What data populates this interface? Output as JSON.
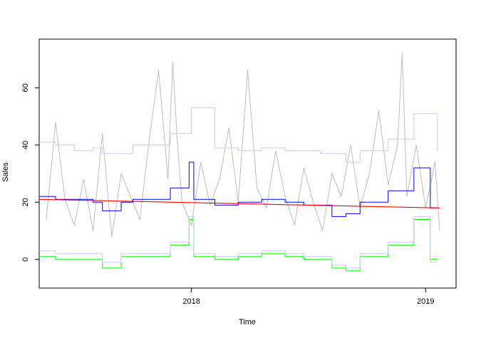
{
  "chart_data": {
    "type": "line",
    "title": "",
    "xlabel": "Time",
    "ylabel": "Sales",
    "x_range": [
      2017.35,
      2019.13
    ],
    "ylim": [
      -10,
      77
    ],
    "x_ticks": [
      {
        "value": 2018,
        "label": "2018"
      },
      {
        "value": 2019,
        "label": "2019"
      }
    ],
    "y_ticks": [
      {
        "value": 0,
        "label": "0"
      },
      {
        "value": 20,
        "label": "20"
      },
      {
        "value": 40,
        "label": "40"
      },
      {
        "value": 60,
        "label": "60"
      }
    ],
    "grid": false,
    "legend": "none",
    "observed": {
      "color": "#bebebe",
      "x": [
        2017.38,
        2017.42,
        2017.46,
        2017.5,
        2017.54,
        2017.58,
        2017.62,
        2017.66,
        2017.7,
        2017.74,
        2017.78,
        2017.82,
        2017.86,
        2017.9,
        2017.92,
        2017.94,
        2017.96,
        2018.0,
        2018.04,
        2018.08,
        2018.12,
        2018.16,
        2018.2,
        2018.24,
        2018.28,
        2018.32,
        2018.36,
        2018.4,
        2018.44,
        2018.48,
        2018.52,
        2018.56,
        2018.6,
        2018.64,
        2018.68,
        2018.72,
        2018.76,
        2018.8,
        2018.84,
        2018.88,
        2018.9,
        2018.92,
        2018.96,
        2019.0,
        2019.04,
        2019.06
      ],
      "y": [
        14,
        48,
        21,
        12,
        28,
        10,
        44,
        8,
        30,
        22,
        14,
        42,
        66,
        28,
        69,
        41,
        20,
        12,
        34,
        19,
        28,
        46,
        20,
        66,
        25,
        18,
        38,
        22,
        12,
        32,
        20,
        10,
        30,
        22,
        40,
        18,
        30,
        52,
        26,
        40,
        72,
        22,
        40,
        18,
        34,
        10
      ]
    },
    "series": [
      {
        "name": "",
        "color": "#c7c7ff",
        "x": [
          2017.35,
          2017.42,
          2017.5,
          2017.58,
          2017.62,
          2017.7,
          2017.75,
          2017.85,
          2017.91,
          2018.0,
          2018.1,
          2018.2,
          2018.3,
          2018.4,
          2018.48,
          2018.55,
          2018.6,
          2018.66,
          2018.72,
          2018.8,
          2018.84,
          2018.9,
          2018.95,
          2019.0,
          2019.05
        ],
        "y": [
          41,
          40,
          38,
          39,
          37,
          37,
          40,
          40,
          44,
          53,
          39,
          38,
          39,
          38,
          38,
          37,
          37,
          34,
          38,
          38,
          42,
          42,
          51,
          51,
          38
        ]
      },
      {
        "name": "",
        "color": "#0000ff",
        "x": [
          2017.35,
          2017.42,
          2017.5,
          2017.58,
          2017.62,
          2017.7,
          2017.75,
          2017.85,
          2017.91,
          2017.99,
          2018.01,
          2018.1,
          2018.2,
          2018.3,
          2018.4,
          2018.48,
          2018.55,
          2018.6,
          2018.66,
          2018.72,
          2018.8,
          2018.84,
          2018.9,
          2018.95,
          2019.0,
          2019.02,
          2019.05
        ],
        "y": [
          22,
          21,
          21,
          20,
          17,
          20,
          21,
          21,
          25,
          34,
          21,
          19,
          20,
          21,
          20,
          19,
          19,
          15,
          16,
          20,
          20,
          24,
          24,
          32,
          32,
          18,
          18
        ]
      },
      {
        "name": "",
        "color": "#00ff00",
        "x": [
          2017.35,
          2017.42,
          2017.5,
          2017.58,
          2017.62,
          2017.7,
          2017.75,
          2017.85,
          2017.91,
          2017.99,
          2018.01,
          2018.1,
          2018.2,
          2018.3,
          2018.4,
          2018.48,
          2018.55,
          2018.6,
          2018.66,
          2018.72,
          2018.8,
          2018.84,
          2018.9,
          2018.95,
          2019.0,
          2019.02,
          2019.05
        ],
        "y": [
          1,
          0,
          0,
          0,
          -3,
          1,
          1,
          1,
          5,
          14,
          1,
          0,
          1,
          2,
          1,
          0,
          0,
          -3,
          -4,
          1,
          1,
          5,
          5,
          14,
          14,
          0,
          0
        ]
      },
      {
        "name": "",
        "color": "#c7c7ff",
        "x": [
          2017.35,
          2017.42,
          2017.5,
          2017.58,
          2017.62,
          2017.7,
          2017.75,
          2017.85,
          2017.91,
          2017.99,
          2018.01,
          2018.1,
          2018.2,
          2018.3,
          2018.4,
          2018.48,
          2018.55,
          2018.6,
          2018.66,
          2018.72,
          2018.8,
          2018.84,
          2018.9,
          2018.95,
          2019.0,
          2019.02,
          2019.05
        ],
        "y": [
          3,
          2,
          2,
          2,
          -1,
          2,
          2,
          2,
          6,
          15,
          2,
          1,
          2,
          3,
          2,
          1,
          1,
          -2,
          -3,
          2,
          2,
          6,
          6,
          15,
          15,
          -1,
          -1
        ]
      },
      {
        "name": "",
        "color": "#ff0000",
        "x": [
          2017.35,
          2019.06
        ],
        "y": [
          21,
          18
        ]
      }
    ]
  }
}
